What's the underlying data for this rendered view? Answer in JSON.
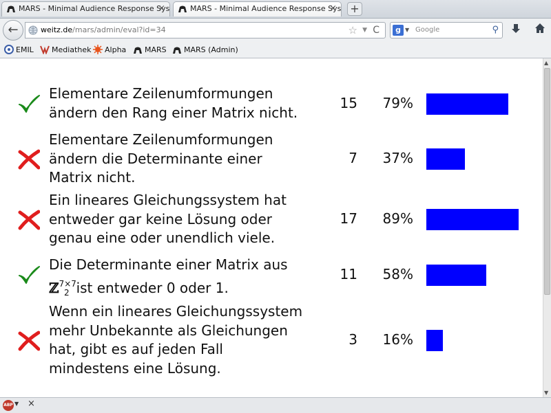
{
  "tabs": [
    {
      "title": "MARS - Minimal Audience Response System",
      "close": "×"
    },
    {
      "title": "MARS - Minimal Audience Response System",
      "close": "×"
    }
  ],
  "new_tab_label": "+",
  "navbar": {
    "back": "←",
    "url_host": "weitz.de",
    "url_path": "/mars/admin/eval?id=34",
    "search_placeholder": "Google",
    "search_engine_letter": "g"
  },
  "bookmarks": [
    {
      "label": "EMIL",
      "icon": "emil-icon"
    },
    {
      "label": "Mediathek",
      "icon": "mediathek-icon"
    },
    {
      "label": "Alpha",
      "icon": "alpha-icon"
    },
    {
      "label": "MARS",
      "icon": "mars-icon"
    },
    {
      "label": "MARS (Admin)",
      "icon": "mars-admin-icon"
    }
  ],
  "results": [
    {
      "correct": true,
      "lines": [
        "Elementare Zeilenumformungen",
        "ändern den Rang einer Matrix nicht."
      ],
      "count": "15",
      "percent": "79%",
      "fraction": 0.79
    },
    {
      "correct": false,
      "lines": [
        "Elementare Zeilenumformungen",
        "ändern die Determinante einer",
        "Matrix nicht."
      ],
      "count": "7",
      "percent": "37%",
      "fraction": 0.37
    },
    {
      "correct": false,
      "lines": [
        "Ein lineares Gleichungssystem hat",
        "entweder gar keine Lösung oder",
        "genau eine oder unendlich viele."
      ],
      "count": "17",
      "percent": "89%",
      "fraction": 0.89
    },
    {
      "correct": true,
      "lines": [
        "Die Determinante einer Matrix aus",
        "ist entweder 0 oder 1."
      ],
      "math": {
        "base": "ℤ",
        "sub": "2",
        "sup": "7×7"
      },
      "count": "11",
      "percent": "58%",
      "fraction": 0.58
    },
    {
      "correct": false,
      "lines": [
        "Wenn ein lineares Gleichungssystem",
        "mehr Unbekannte als Gleichungen",
        "hat, gibt es auf jeden Fall",
        "mindestens eine Lösung."
      ],
      "count": "3",
      "percent": "16%",
      "fraction": 0.16
    }
  ],
  "colors": {
    "bar": "#0000ff",
    "check": "#1a8a1a",
    "cross": "#e01e1e"
  },
  "addon_bar": {
    "abp_label": "ABP",
    "close": "×"
  }
}
